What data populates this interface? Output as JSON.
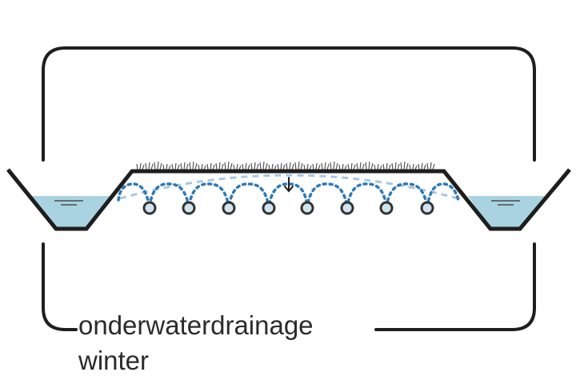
{
  "caption": {
    "line1": "onderwaterdrainage",
    "line2": "winter"
  },
  "colors": {
    "outline": "#1e1e1e",
    "water_fill": "#a9d3e0",
    "drain_line": "#2f79b6",
    "groundwater_line": "#a8c7e3",
    "drain_pipe_fill": "#cfe4ef",
    "grass": "#555555"
  },
  "icons": {
    "drain_pipes": "circle",
    "infiltration_arrow": "arrow-down-icon",
    "vegetation": "grass-icon"
  }
}
